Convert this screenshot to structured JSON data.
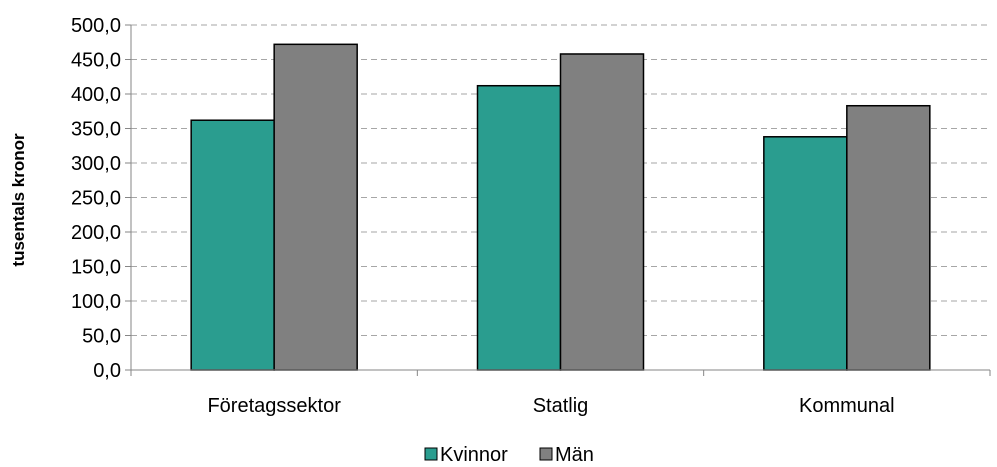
{
  "chart_data": {
    "type": "bar",
    "categories": [
      "Företagssektor",
      "Statlig",
      "Kommunal"
    ],
    "series": [
      {
        "name": "Kvinnor",
        "values": [
          362.0,
          412.0,
          338.0
        ],
        "color": "#2a9d8f"
      },
      {
        "name": "Män",
        "values": [
          472.0,
          458.0,
          383.0
        ],
        "color": "#808080"
      }
    ],
    "ylabel": "tusentals kronor",
    "xlabel": "",
    "ylim": [
      0,
      500
    ],
    "yticks": [
      "0,0",
      "50,0",
      "100,0",
      "150,0",
      "200,0",
      "250,0",
      "300,0",
      "350,0",
      "400,0",
      "450,0",
      "500,0"
    ],
    "grid": true,
    "legend_position": "bottom"
  }
}
